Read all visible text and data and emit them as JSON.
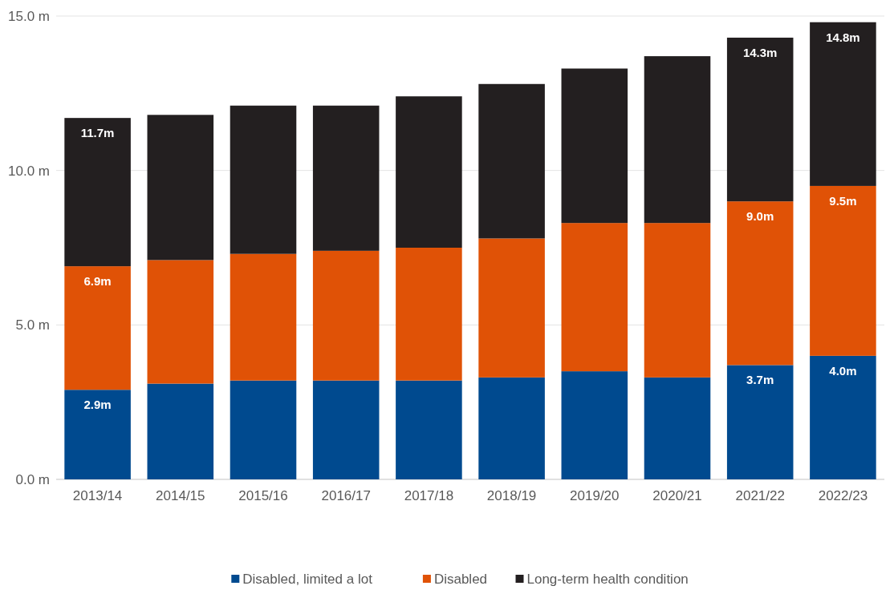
{
  "chart_data": {
    "type": "bar",
    "stacked": true,
    "categories": [
      "2013/14",
      "2014/15",
      "2015/16",
      "2016/17",
      "2017/18",
      "2018/19",
      "2019/20",
      "2020/21",
      "2021/22",
      "2022/23"
    ],
    "series": [
      {
        "name": "Disabled, limited a lot",
        "color": "#004a8f",
        "values": [
          2.9,
          3.1,
          3.2,
          3.2,
          3.2,
          3.3,
          3.5,
          3.3,
          3.7,
          4.0
        ],
        "value_labels": [
          "2.9m",
          null,
          null,
          null,
          null,
          null,
          null,
          null,
          "3.7m",
          "4.0m"
        ]
      },
      {
        "name": "Disabled",
        "color": "#e05206",
        "values": [
          4.0,
          4.0,
          4.1,
          4.2,
          4.3,
          4.5,
          4.8,
          5.0,
          5.3,
          5.5
        ]
      },
      {
        "name": "Long-term health condition",
        "color": "#231f20",
        "values": [
          4.8,
          4.7,
          4.8,
          4.7,
          4.9,
          5.0,
          5.0,
          5.4,
          5.3,
          5.3
        ]
      }
    ],
    "annotations": [
      {
        "text": "6.9m",
        "x": "2013/14",
        "y": 6.9
      },
      {
        "text": "9.0m",
        "x": "2021/22",
        "y": 9.0
      },
      {
        "text": "9.5m",
        "x": "2022/23",
        "y": 9.5
      },
      {
        "text": "11.7m",
        "x": "2013/14",
        "y": 11.7
      },
      {
        "text": "14.3m",
        "x": "2021/22",
        "y": 14.3
      },
      {
        "text": "14.8m",
        "x": "2022/23",
        "y": 14.8
      }
    ],
    "ylim": [
      0,
      15
    ],
    "yticks": [
      {
        "value": 0,
        "label": "0.0 m"
      },
      {
        "value": 5,
        "label": "5.0 m"
      },
      {
        "value": 10,
        "label": "10.0 m"
      },
      {
        "value": 15,
        "label": "15.0 m"
      }
    ],
    "grid": "y",
    "legend": "bottom"
  }
}
